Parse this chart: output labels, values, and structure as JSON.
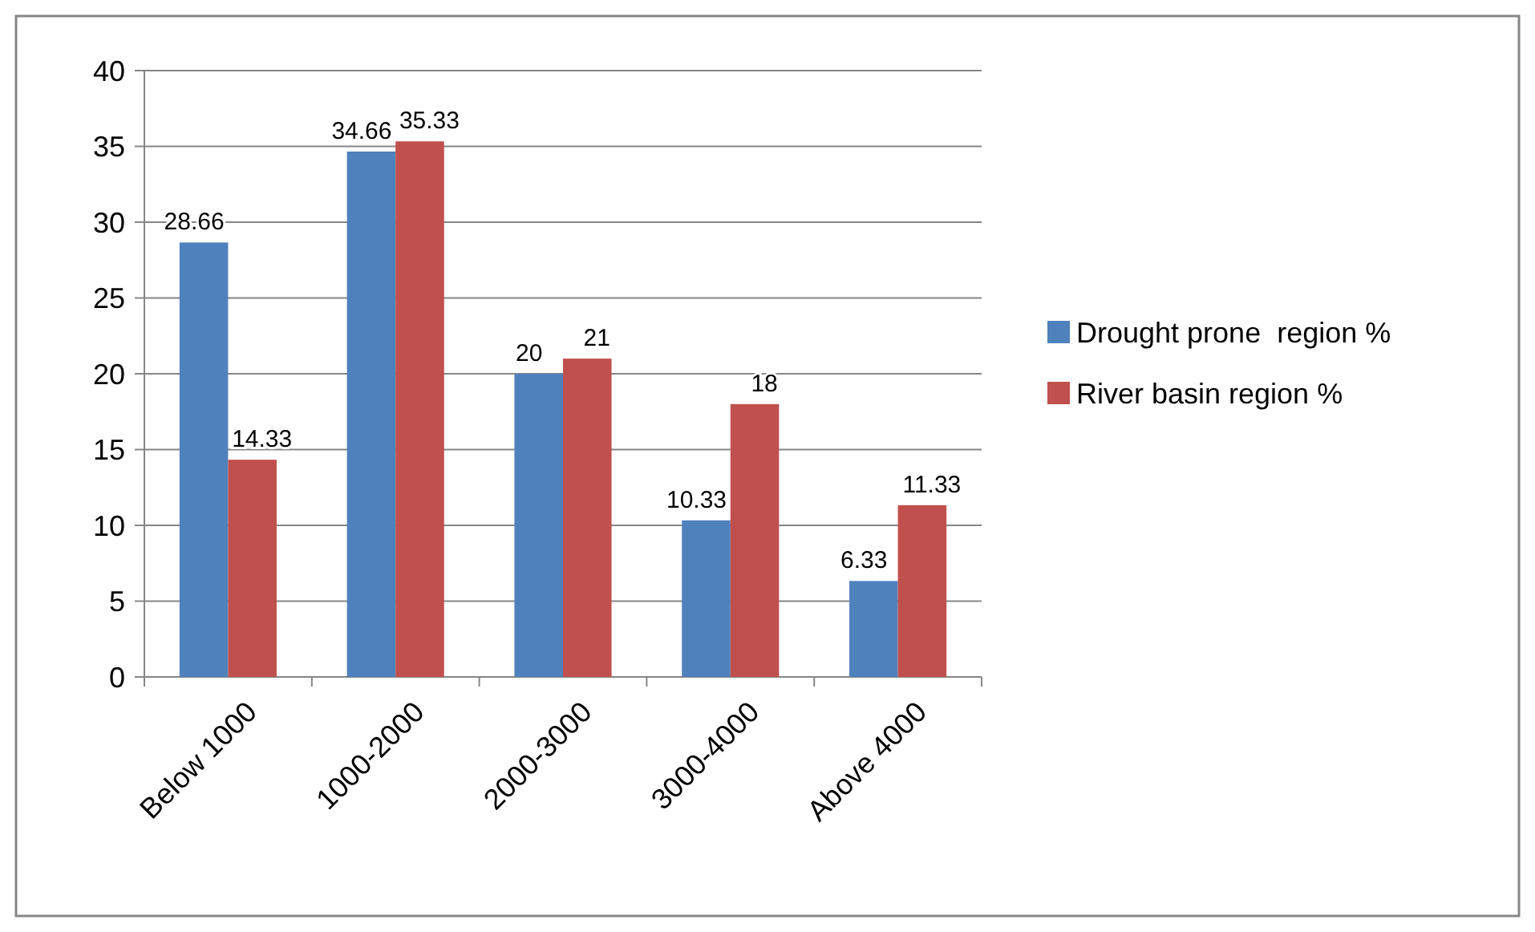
{
  "chart_data": {
    "type": "bar",
    "categories": [
      "Below 1000",
      "1000-2000",
      "2000-3000",
      "3000-4000",
      "Above 4000"
    ],
    "series": [
      {
        "name": "Drought prone  region %",
        "color": "#4f81bd",
        "values": [
          28.66,
          34.66,
          20,
          10.33,
          6.33
        ]
      },
      {
        "name": "River basin region %",
        "color": "#c0504d",
        "values": [
          14.33,
          35.33,
          21,
          18,
          11.33
        ]
      }
    ],
    "ylim": [
      0,
      40
    ],
    "yticks": [
      0,
      5,
      10,
      15,
      20,
      25,
      30,
      35,
      40
    ],
    "grid": "y",
    "legend": "right",
    "data_labels": true
  }
}
